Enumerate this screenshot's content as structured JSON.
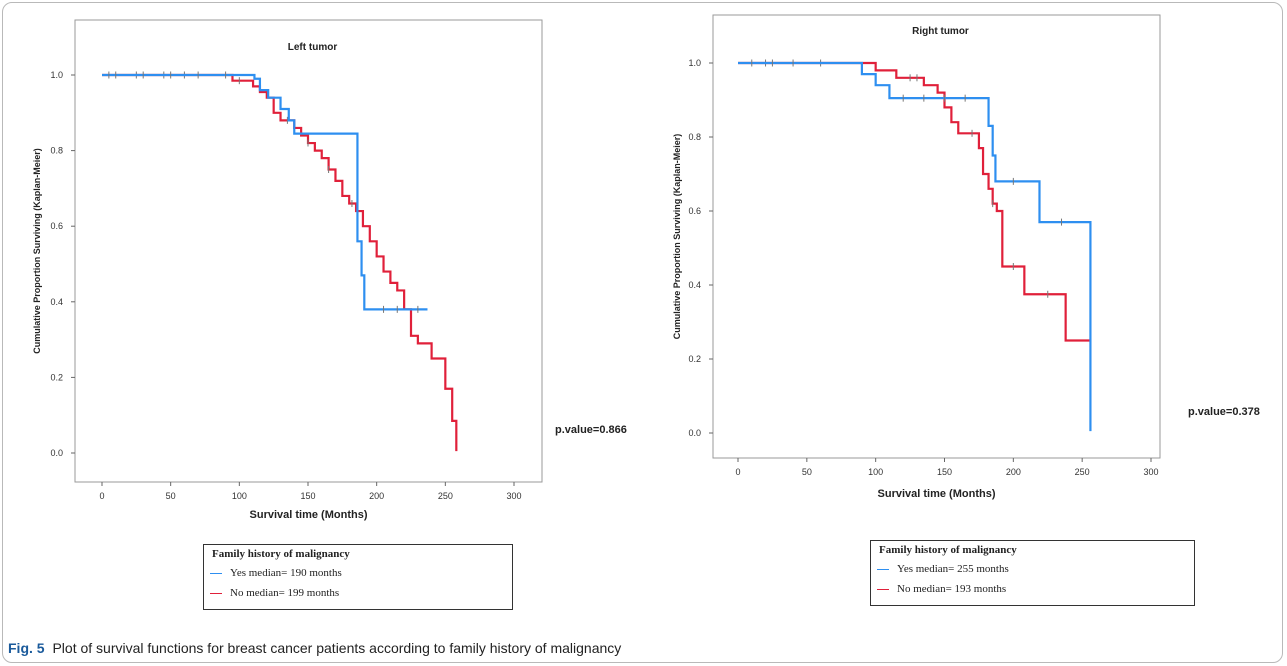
{
  "figure": {
    "fig_label": "Fig. 5",
    "caption": "Plot of survival functions for breast cancer patients according to family history of malignancy"
  },
  "chart_data": [
    {
      "type": "line",
      "title": "Left tumor",
      "xlabel": "Survival time (Months)",
      "ylabel": "Cumulative Proportion Surviving (Kaplan-Meier)",
      "xlim": [
        0,
        300
      ],
      "ylim": [
        0,
        1
      ],
      "xticks": [
        0,
        50,
        100,
        150,
        200,
        250,
        300
      ],
      "yticks": [
        0.0,
        0.2,
        0.4,
        0.6,
        0.8,
        1.0
      ],
      "annotation": "p.value=0.866",
      "legend": {
        "title": "Family history of malignancy",
        "position": "bottom-center",
        "entries": [
          "Yes median= 190 months",
          "No median= 199 months"
        ]
      },
      "colors": {
        "yes": "#2e8ff0",
        "no": "#e0203a",
        "censor": "#777777"
      },
      "series": [
        {
          "key": "yes",
          "x": [
            0,
            111,
            115,
            121,
            130,
            136,
            140,
            180,
            186,
            189,
            191,
            237
          ],
          "y": [
            1.0,
            0.99,
            0.96,
            0.94,
            0.91,
            0.88,
            0.845,
            0.845,
            0.56,
            0.47,
            0.38,
            0.38
          ],
          "censored": [
            5,
            10,
            30,
            50,
            70,
            90,
            205,
            215,
            230
          ]
        },
        {
          "key": "no",
          "x": [
            0,
            95,
            110,
            115,
            120,
            125,
            130,
            140,
            145,
            150,
            155,
            160,
            165,
            170,
            175,
            180,
            185,
            190,
            195,
            200,
            205,
            210,
            215,
            220,
            225,
            230,
            240,
            245,
            250,
            255,
            258
          ],
          "y": [
            1.0,
            0.985,
            0.97,
            0.955,
            0.94,
            0.9,
            0.88,
            0.86,
            0.84,
            0.82,
            0.8,
            0.78,
            0.75,
            0.72,
            0.68,
            0.66,
            0.64,
            0.6,
            0.56,
            0.52,
            0.48,
            0.45,
            0.43,
            0.38,
            0.31,
            0.29,
            0.25,
            0.25,
            0.17,
            0.085,
            0.005
          ],
          "censored": [
            25,
            45,
            60,
            100,
            135,
            150,
            165,
            182
          ]
        }
      ]
    },
    {
      "type": "line",
      "title": "Right tumor",
      "xlabel": "Survival time (Months)",
      "ylabel": "Cumulative Proportion Surviving (Kaplan-Meier)",
      "xlim": [
        0,
        300
      ],
      "ylim": [
        0,
        1
      ],
      "xticks": [
        0,
        50,
        100,
        150,
        200,
        250,
        300
      ],
      "yticks": [
        0.0,
        0.2,
        0.4,
        0.6,
        0.8,
        1.0
      ],
      "annotation": "p.value=0.378",
      "legend": {
        "title": "Family history of malignancy",
        "position": "bottom-center",
        "entries": [
          "Yes median= 255 months",
          "No median= 193 months"
        ]
      },
      "colors": {
        "yes": "#2e8ff0",
        "no": "#e0203a",
        "censor": "#777777"
      },
      "series": [
        {
          "key": "yes",
          "x": [
            0,
            90,
            95,
            100,
            110,
            180,
            182,
            185,
            187,
            219,
            255,
            256
          ],
          "y": [
            1.0,
            0.97,
            0.97,
            0.94,
            0.905,
            0.905,
            0.83,
            0.75,
            0.68,
            0.57,
            0.57,
            0.005
          ],
          "censored": [
            10,
            25,
            40,
            120,
            135,
            150,
            165,
            200,
            235
          ]
        },
        {
          "key": "no",
          "x": [
            0,
            100,
            115,
            135,
            145,
            150,
            155,
            160,
            175,
            178,
            182,
            185,
            188,
            192,
            205,
            208,
            238,
            256
          ],
          "y": [
            1.0,
            0.98,
            0.96,
            0.94,
            0.92,
            0.88,
            0.84,
            0.81,
            0.77,
            0.7,
            0.66,
            0.62,
            0.6,
            0.45,
            0.45,
            0.375,
            0.25,
            0.25
          ],
          "censored": [
            20,
            60,
            125,
            130,
            170,
            185,
            200,
            225
          ]
        }
      ]
    }
  ]
}
